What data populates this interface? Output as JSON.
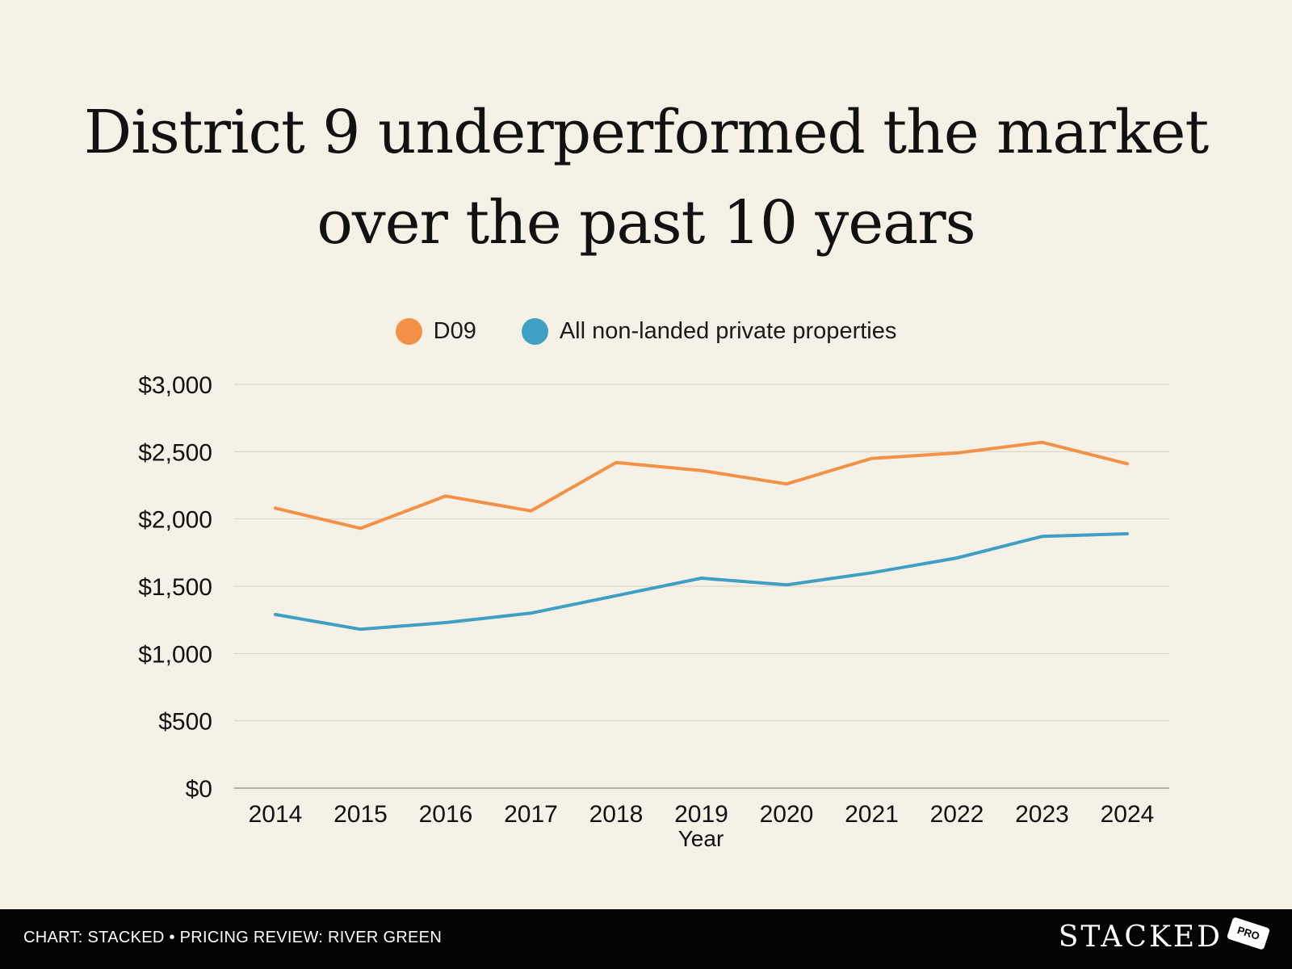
{
  "chart_data": {
    "type": "line",
    "title_lines": [
      "District 9 underperformed the market",
      "over the past 10 years"
    ],
    "categories": [
      "2014",
      "2015",
      "2016",
      "2017",
      "2018",
      "2019",
      "2020",
      "2021",
      "2022",
      "2023",
      "2024"
    ],
    "series": [
      {
        "name": "D09",
        "color": "#F39148",
        "values": [
          2080,
          1930,
          2170,
          2060,
          2420,
          2360,
          2260,
          2450,
          2490,
          2570,
          2410
        ]
      },
      {
        "name": "All non-landed private properties",
        "color": "#3FA0C4",
        "values": [
          1290,
          1180,
          1230,
          1300,
          1430,
          1560,
          1510,
          1600,
          1710,
          1870,
          1890
        ]
      }
    ],
    "y_ticks": [
      "$0",
      "$500",
      "$1,000",
      "$1,500",
      "$2,000",
      "$2,500",
      "$3,000"
    ],
    "ylim": [
      0,
      3000
    ],
    "xlabel": "Year",
    "ylabel": "",
    "grid": true,
    "legend_position": "top-center"
  },
  "footer": {
    "credit": "CHART: STACKED • PRICING REVIEW: RIVER GREEN",
    "brand": "STACKED",
    "brand_tag": "PRO"
  }
}
